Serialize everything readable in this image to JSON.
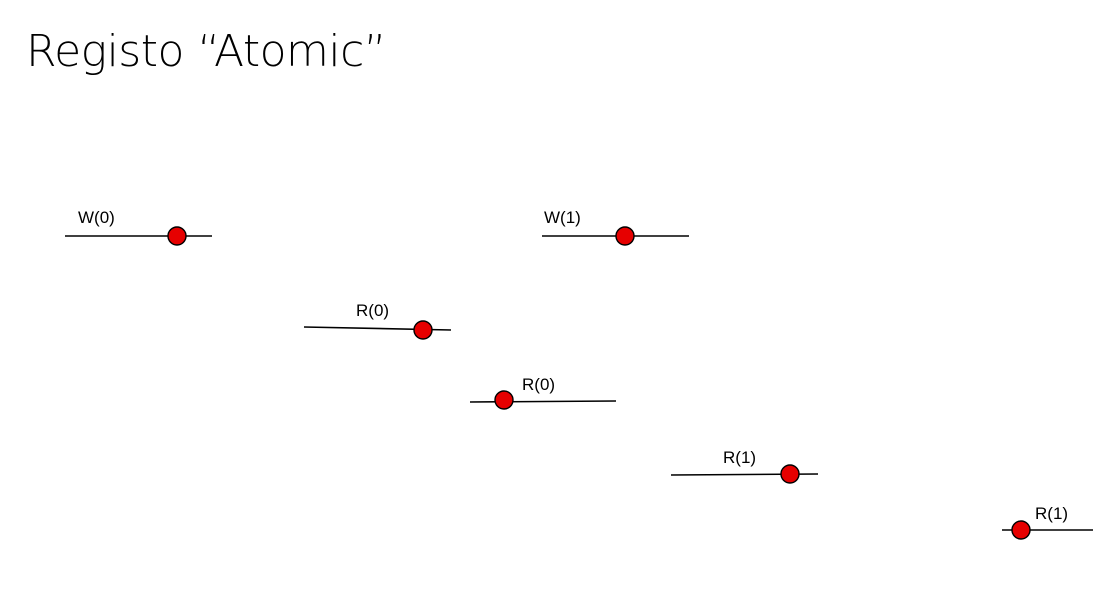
{
  "title": "Registo “Atomic”",
  "colors": {
    "point_fill": "#e60000",
    "line": "#000000"
  },
  "operations": [
    {
      "label": "W(0)"
    },
    {
      "label": "W(1)"
    },
    {
      "label": "R(0)"
    },
    {
      "label": "R(0)"
    },
    {
      "label": "R(1)"
    },
    {
      "label": "R(1)"
    }
  ]
}
